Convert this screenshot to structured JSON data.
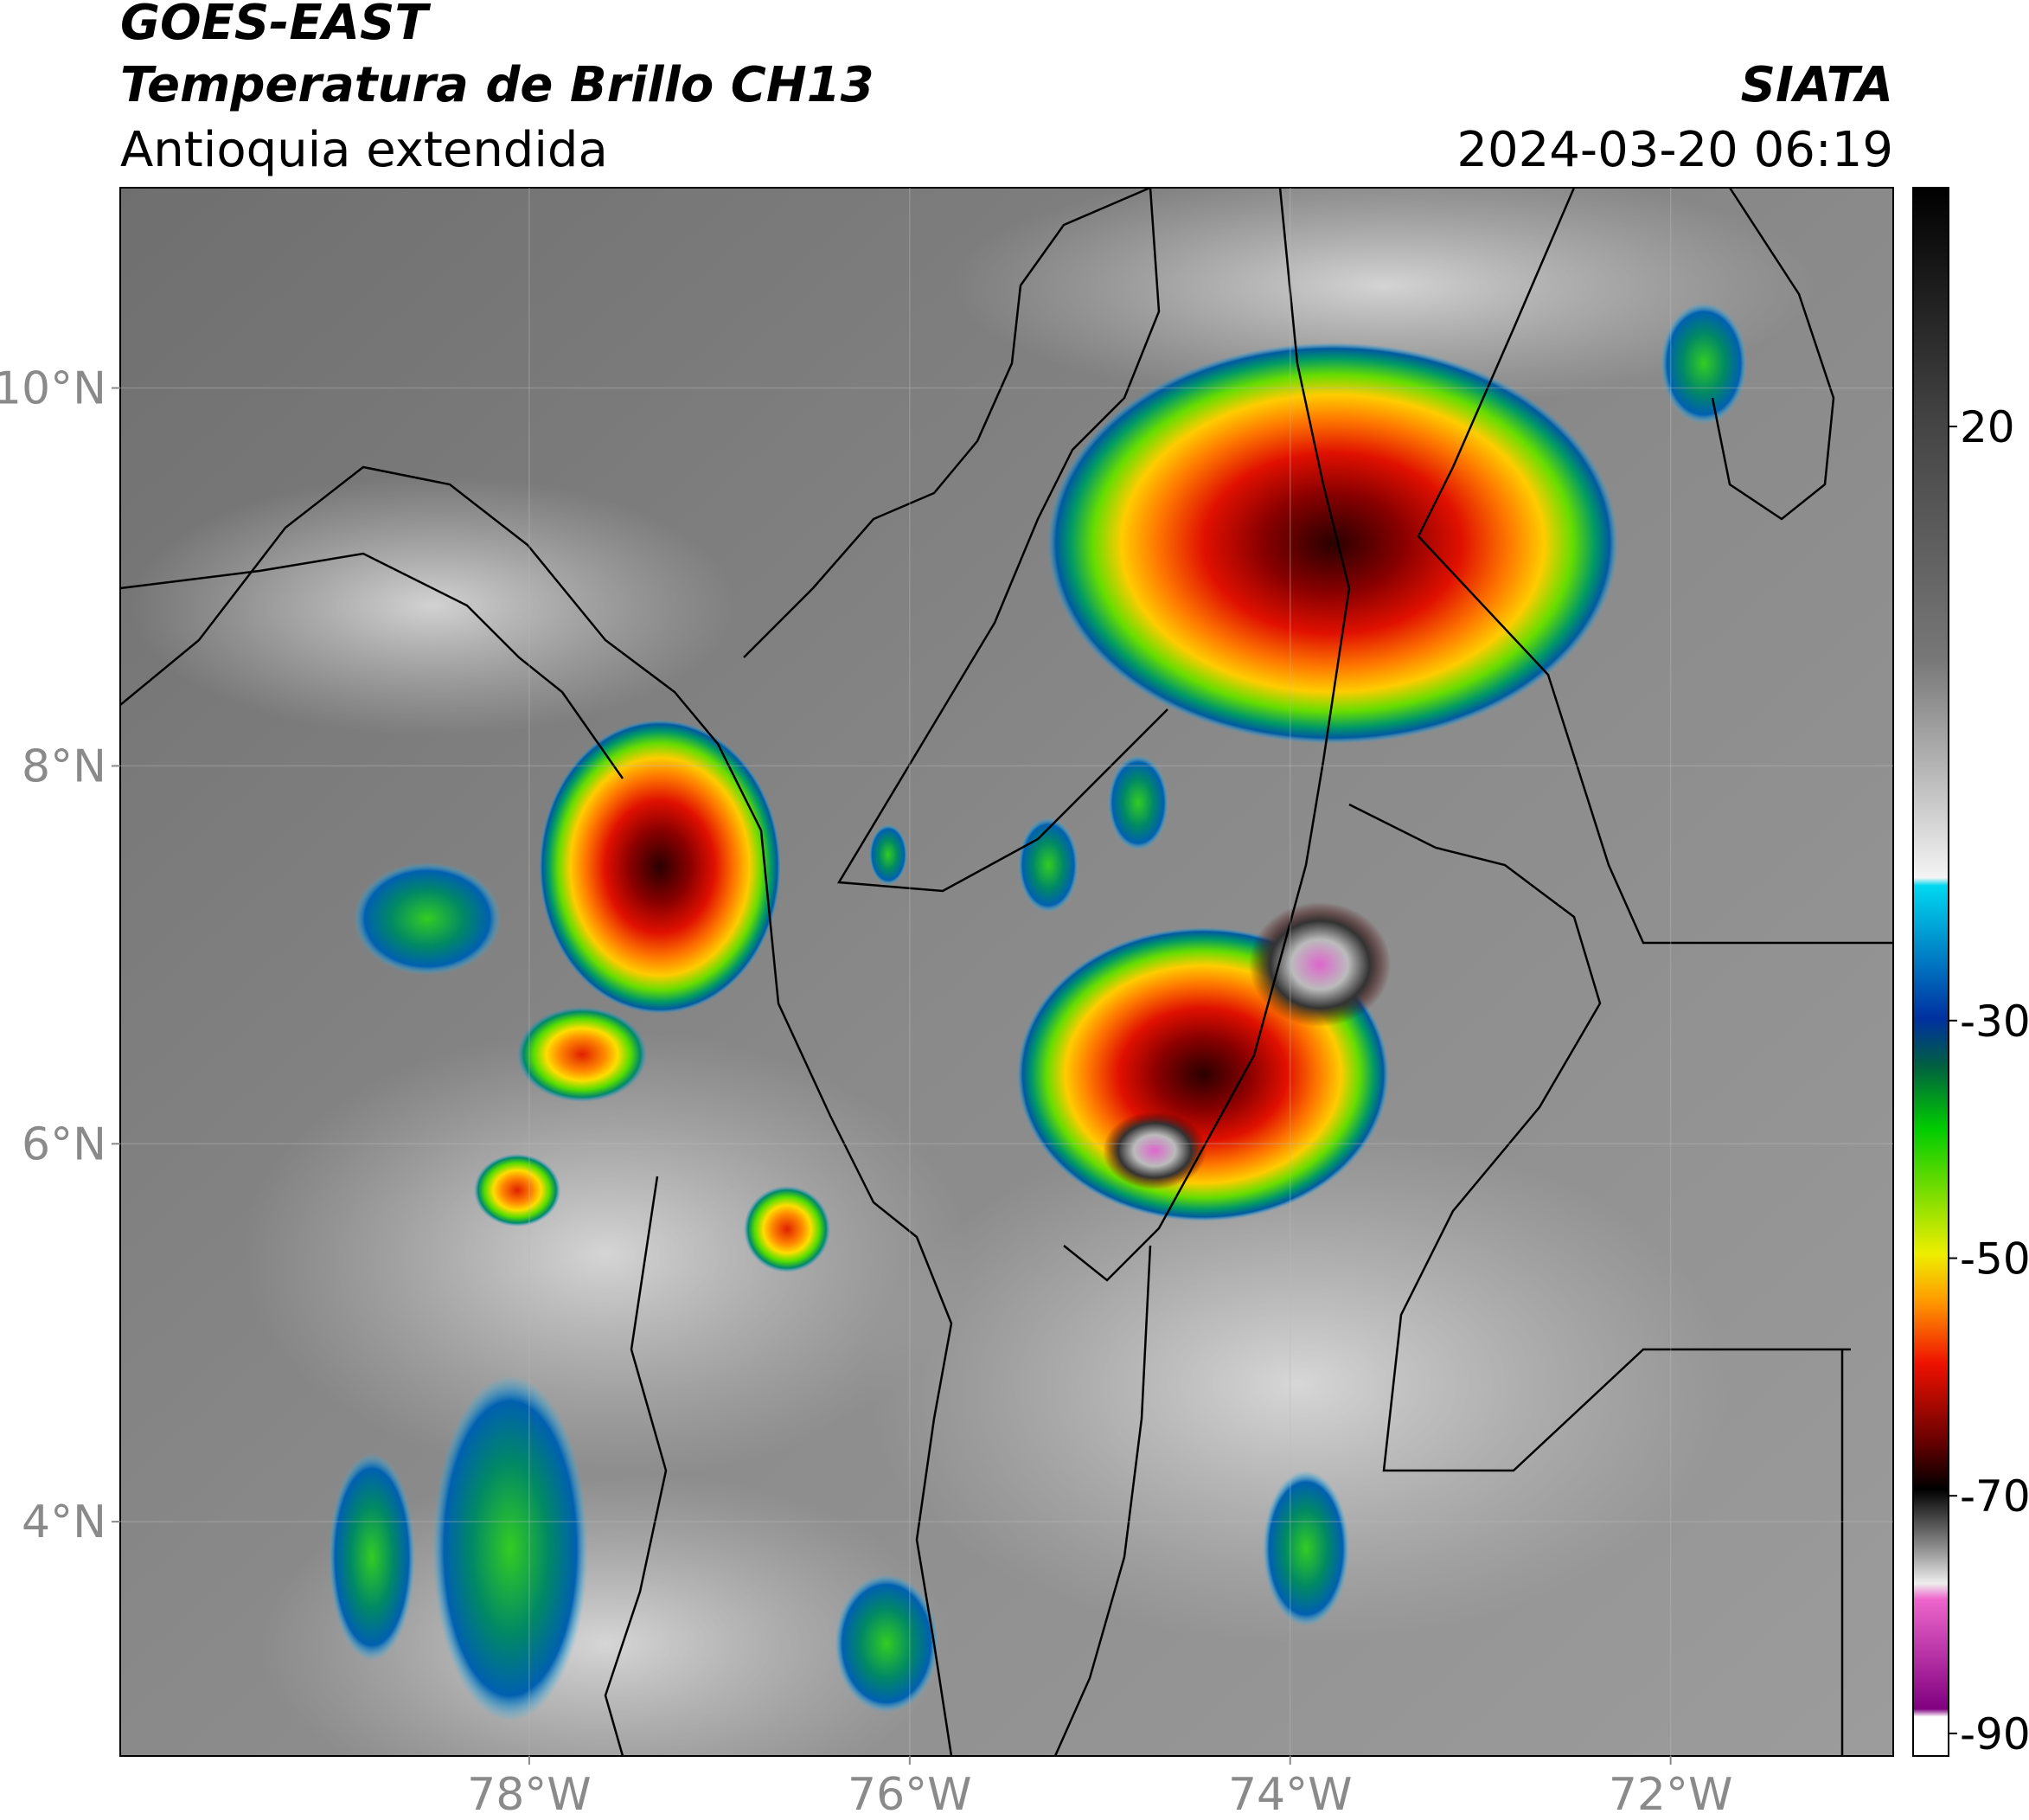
{
  "header": {
    "satellite": "GOES-EAST",
    "product": "Temperatura de Brillo CH13",
    "region": "Antioquia extendida",
    "source": "SIATA",
    "datetime": "2024-03-20 06:19"
  },
  "map": {
    "xlim": [
      -80.15,
      -70.83
    ],
    "ylim": [
      2.76,
      11.06
    ],
    "xticks": [
      {
        "value": -78,
        "label": "78°W"
      },
      {
        "value": -76,
        "label": "76°W"
      },
      {
        "value": -74,
        "label": "74°W"
      },
      {
        "value": -72,
        "label": "72°W"
      }
    ],
    "yticks": [
      {
        "value": 4,
        "label": "4°N"
      },
      {
        "value": 6,
        "label": "6°N"
      },
      {
        "value": 8,
        "label": "8°N"
      },
      {
        "value": 10,
        "label": "10°N"
      }
    ],
    "grid": true
  },
  "colorbar": {
    "lim": [
      -91.9,
      40.1
    ],
    "ticks": [
      -90,
      -70,
      -50,
      -30,
      20
    ]
  }
}
